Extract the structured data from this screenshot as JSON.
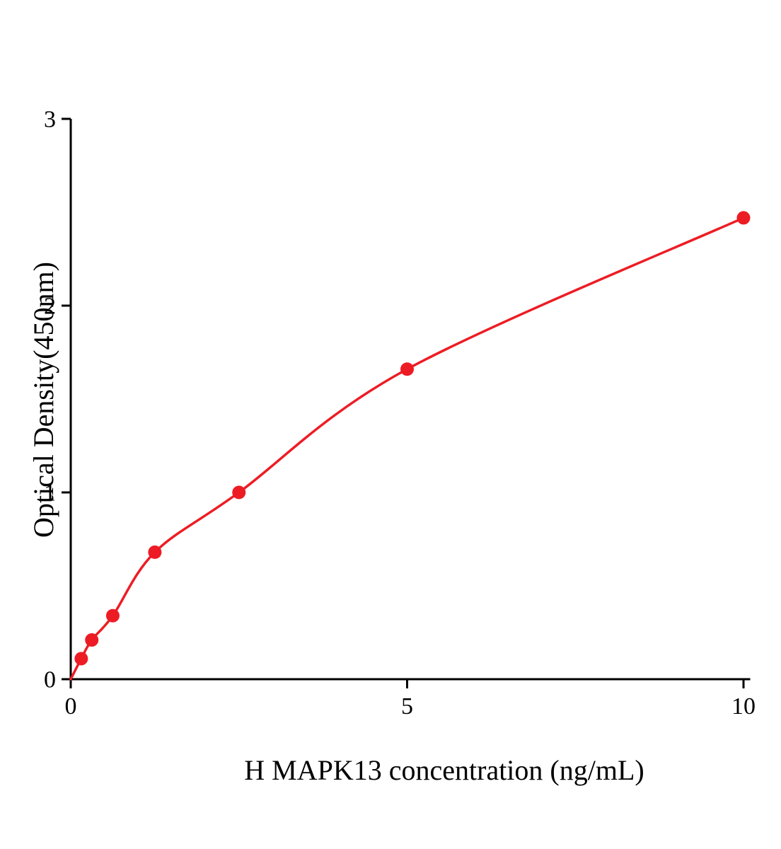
{
  "chart_data": {
    "type": "scatter",
    "title": "",
    "xlabel": "H MAPK13 concentration (ng/mL)",
    "ylabel": "Optical Density(450nm)",
    "x": [
      0.156,
      0.3125,
      0.625,
      1.25,
      2.5,
      5,
      10
    ],
    "y": [
      0.11,
      0.21,
      0.34,
      0.68,
      1.0,
      1.66,
      2.47
    ],
    "curve_start_x": 0,
    "curve_start_y": 0,
    "xlim": [
      0,
      10.1
    ],
    "ylim": [
      0,
      3
    ],
    "x_ticks": [
      0,
      5,
      10
    ],
    "x_tick_labels": [
      "0",
      "5",
      "10"
    ],
    "y_ticks": [
      0,
      1,
      2,
      3
    ],
    "y_tick_labels": [
      "0",
      "1",
      "2",
      "3"
    ],
    "grid": false,
    "legend": null,
    "colors": {
      "line": "#ed1c24",
      "marker": "#ed1c24",
      "axis": "#000000",
      "tick_text": "#000000",
      "background": "#ffffff"
    }
  }
}
